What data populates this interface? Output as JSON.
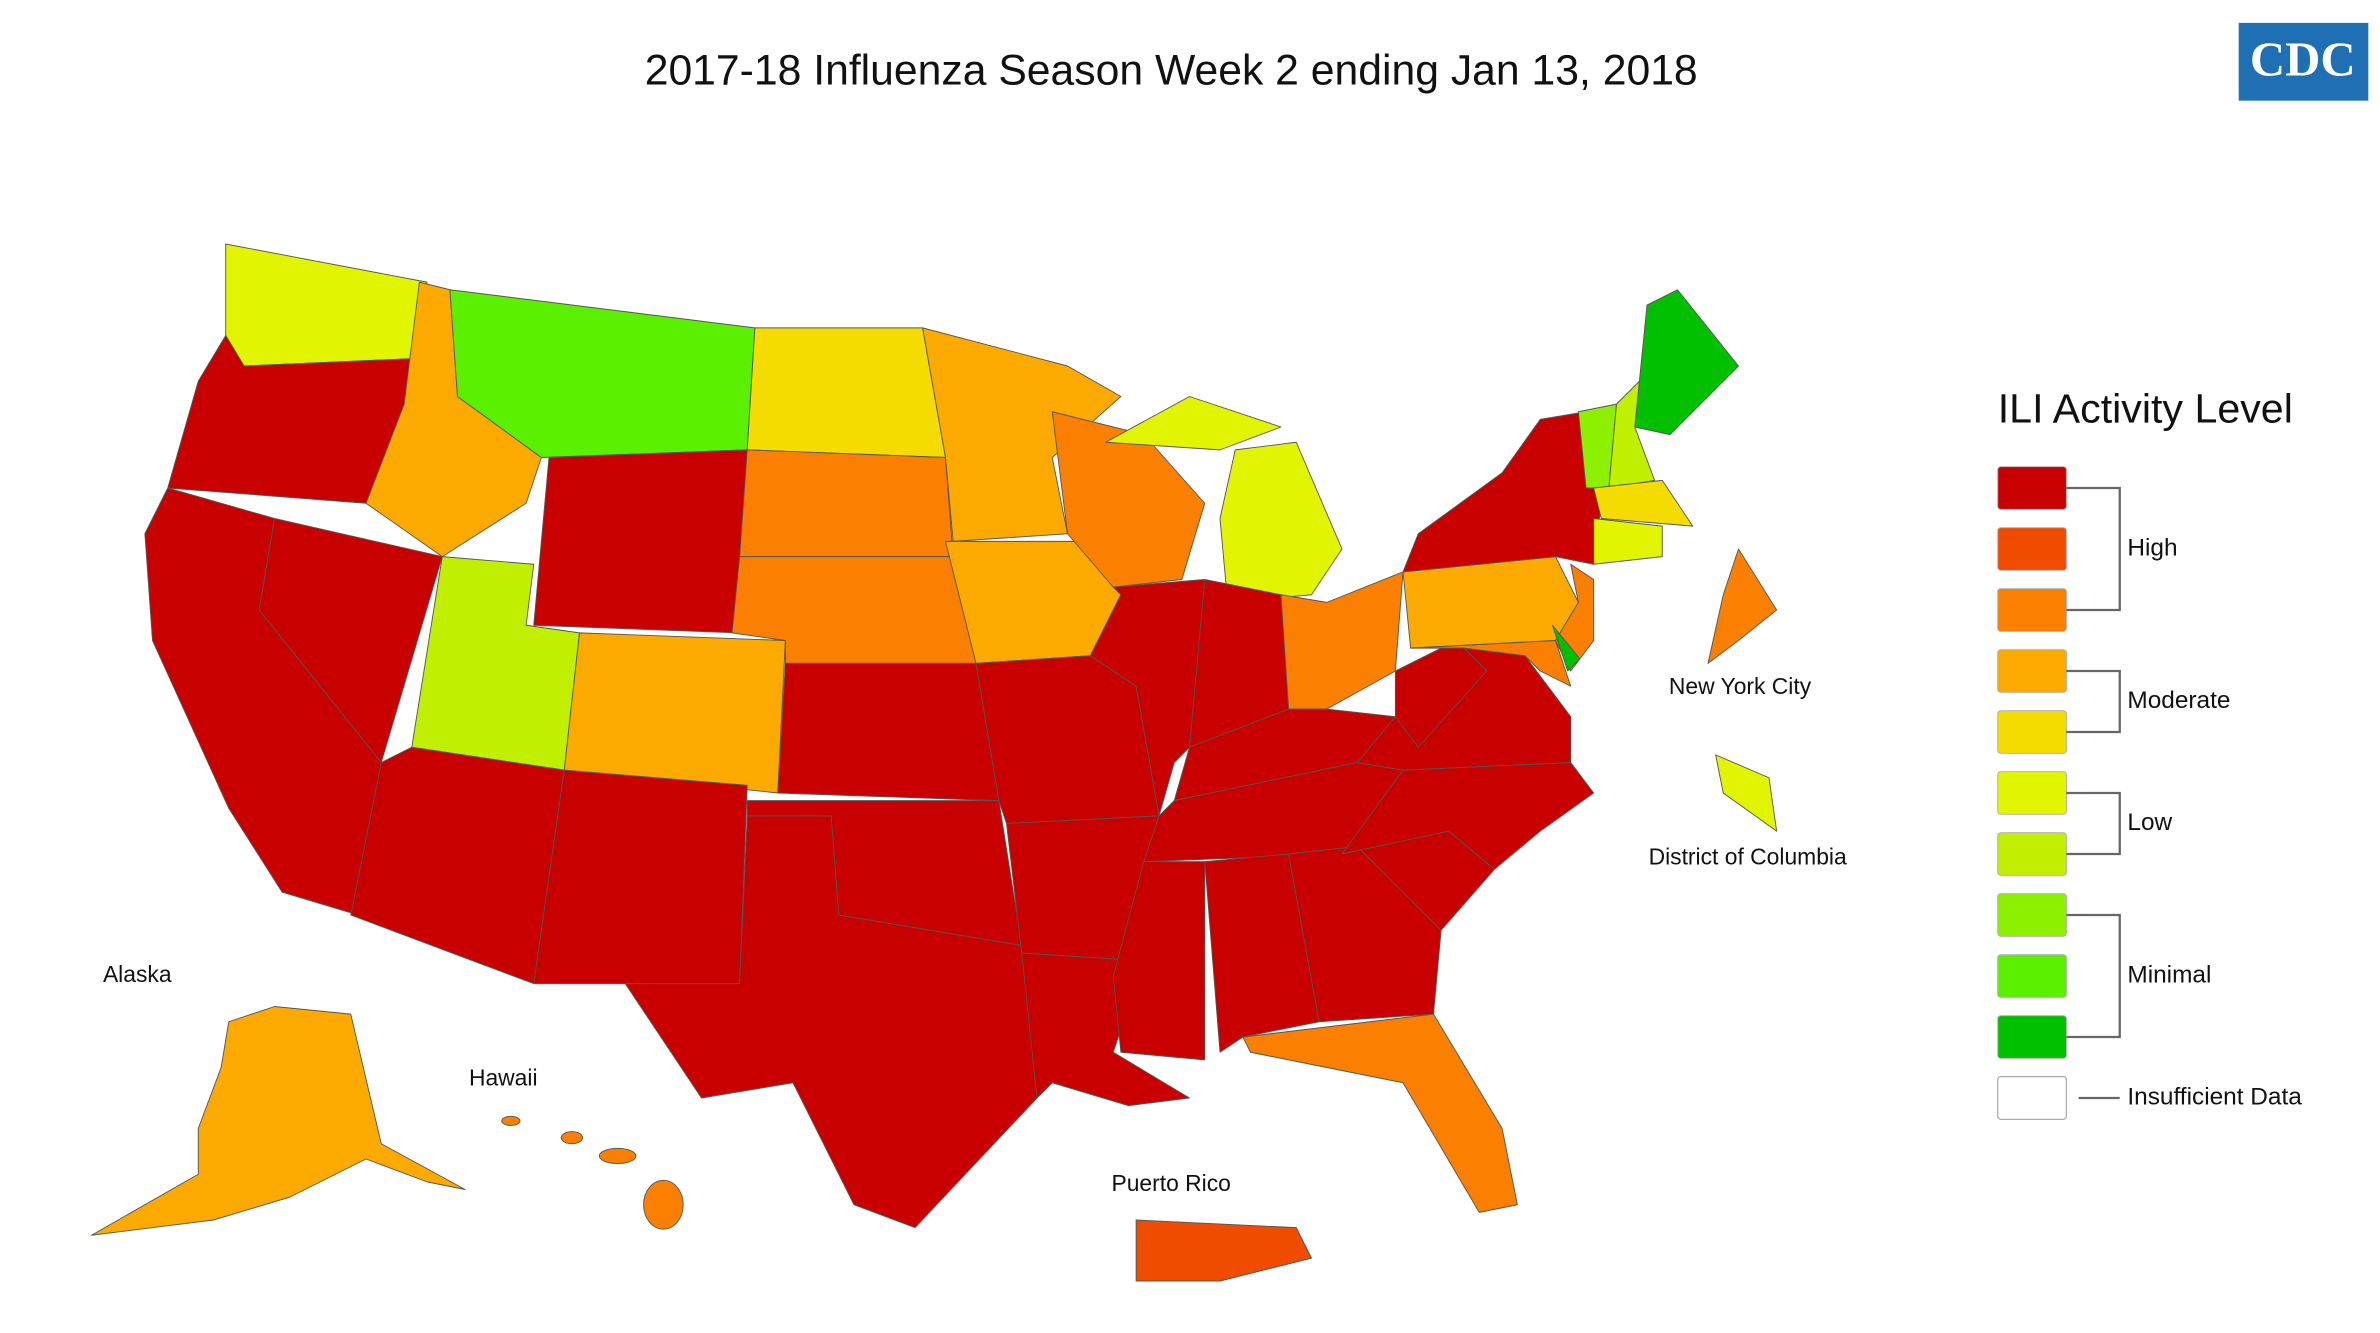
{
  "title": "2017-18 Influenza Season Week 2 ending Jan 13, 2018",
  "logo": "CDC",
  "map_labels": {
    "alaska": "Alaska",
    "hawaii": "Hawaii",
    "puerto_rico": "Puerto Rico",
    "new_york_city": "New York City",
    "district_of_columbia": "District of Columbia"
  },
  "legend": {
    "title": "ILI Activity Level",
    "groups": [
      {
        "label": "High",
        "colors": [
          "#c80000",
          "#f04c00",
          "#fb7f00"
        ]
      },
      {
        "label": "Moderate",
        "colors": [
          "#fcaa00",
          "#f5dc00"
        ]
      },
      {
        "label": "Low",
        "colors": [
          "#e2f500",
          "#c0f000"
        ]
      },
      {
        "label": "Minimal",
        "colors": [
          "#8cf000",
          "#5af000",
          "#00c000"
        ]
      }
    ],
    "insufficient": {
      "label": "Insufficient Data",
      "color": "#ffffff"
    }
  }
}
